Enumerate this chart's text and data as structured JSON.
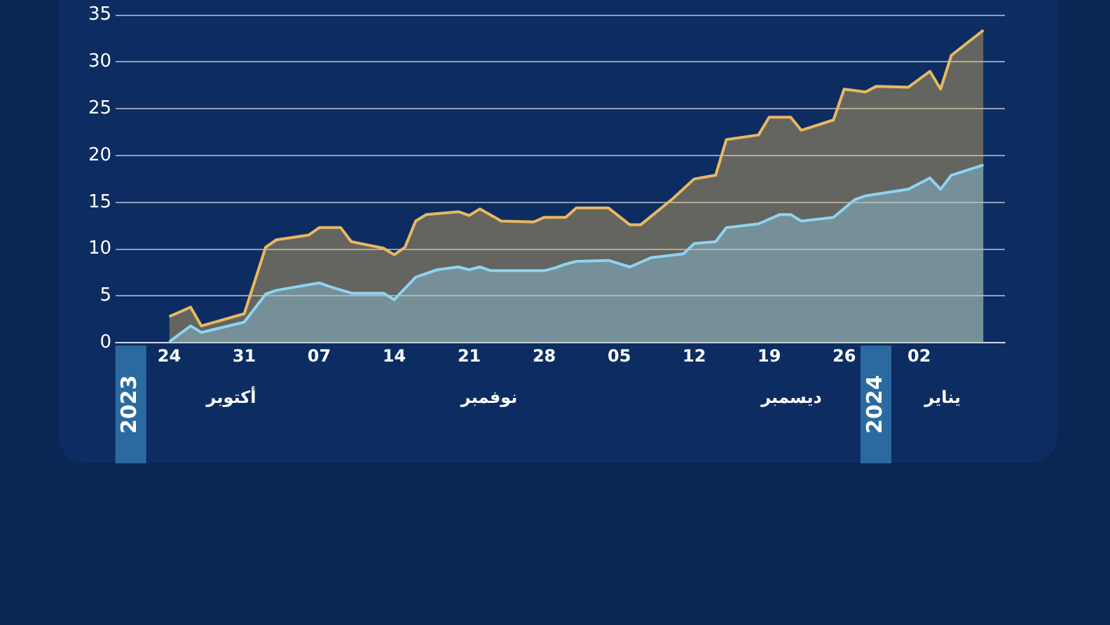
{
  "chart_data": {
    "type": "area",
    "xlim": [
      "2023-10-19",
      "2024-01-10"
    ],
    "ylim": [
      0,
      35
    ],
    "yticks": [
      0,
      5,
      10,
      15,
      20,
      25,
      30,
      35
    ],
    "xticks": [
      {
        "value": "2023-10-24",
        "label": "24"
      },
      {
        "value": "2023-10-31",
        "label": "31"
      },
      {
        "value": "2023-11-07",
        "label": "07"
      },
      {
        "value": "2023-11-14",
        "label": "14"
      },
      {
        "value": "2023-11-21",
        "label": "21"
      },
      {
        "value": "2023-11-28",
        "label": "28"
      },
      {
        "value": "2023-12-05",
        "label": "05"
      },
      {
        "value": "2023-12-12",
        "label": "12"
      },
      {
        "value": "2023-12-19",
        "label": "19"
      },
      {
        "value": "2023-12-26",
        "label": "26"
      },
      {
        "value": "2024-01-02",
        "label": "02"
      }
    ],
    "grid": "y",
    "legend": false,
    "marker": "none",
    "annotations": [
      "2023",
      "أكتوبر",
      "نوفمبر",
      "ديسمبر",
      "2024",
      "يناير"
    ],
    "series": [
      {
        "color": "#e9b860",
        "x": [
          "2023-10-24",
          "2023-10-26",
          "2023-10-27",
          "2023-10-31",
          "2023-11-02",
          "2023-11-03",
          "2023-11-06",
          "2023-11-07",
          "2023-11-09",
          "2023-11-10",
          "2023-11-13",
          "2023-11-14",
          "2023-11-15",
          "2023-11-16",
          "2023-11-17",
          "2023-11-20",
          "2023-11-21",
          "2023-11-22",
          "2023-11-24",
          "2023-11-27",
          "2023-11-28",
          "2023-11-30",
          "2023-12-01",
          "2023-12-04",
          "2023-12-06",
          "2023-12-07",
          "2023-12-10",
          "2023-12-12",
          "2023-12-14",
          "2023-12-15",
          "2023-12-18",
          "2023-12-19",
          "2023-12-21",
          "2023-12-22",
          "2023-12-25",
          "2023-12-26",
          "2023-12-28",
          "2023-12-29",
          "2024-01-01",
          "2024-01-03",
          "2024-01-04",
          "2024-01-05",
          "2024-01-08"
        ],
        "values": [
          2.8,
          3.8,
          1.8,
          3.1,
          10.2,
          11.0,
          11.5,
          12.3,
          12.3,
          10.8,
          10.1,
          9.4,
          10.2,
          13.0,
          13.7,
          14.0,
          13.6,
          14.3,
          13.0,
          12.9,
          13.4,
          13.4,
          14.4,
          14.4,
          12.6,
          12.6,
          15.4,
          17.5,
          17.9,
          21.7,
          22.2,
          24.1,
          24.1,
          22.7,
          23.8,
          27.1,
          26.8,
          27.4,
          27.3,
          29.0,
          27.1,
          30.7,
          33.4
        ]
      },
      {
        "color": "#8fd3f0",
        "x": [
          "2023-10-24",
          "2023-10-26",
          "2023-10-27",
          "2023-10-31",
          "2023-11-02",
          "2023-11-03",
          "2023-11-07",
          "2023-11-08",
          "2023-11-10",
          "2023-11-13",
          "2023-11-14",
          "2023-11-16",
          "2023-11-18",
          "2023-11-20",
          "2023-11-21",
          "2023-11-22",
          "2023-11-23",
          "2023-11-28",
          "2023-11-29",
          "2023-11-30",
          "2023-12-01",
          "2023-12-04",
          "2023-12-06",
          "2023-12-08",
          "2023-12-11",
          "2023-12-12",
          "2023-12-14",
          "2023-12-15",
          "2023-12-18",
          "2023-12-20",
          "2023-12-21",
          "2023-12-22",
          "2023-12-25",
          "2023-12-27",
          "2023-12-28",
          "2024-01-01",
          "2024-01-03",
          "2024-01-04",
          "2024-01-05",
          "2024-01-08"
        ],
        "values": [
          0.1,
          1.8,
          1.1,
          2.2,
          5.2,
          5.6,
          6.4,
          6.0,
          5.3,
          5.3,
          4.6,
          7.0,
          7.8,
          8.1,
          7.8,
          8.1,
          7.7,
          7.7,
          8.0,
          8.4,
          8.7,
          8.8,
          8.1,
          9.1,
          9.5,
          10.6,
          10.8,
          12.3,
          12.7,
          13.7,
          13.7,
          13.0,
          13.4,
          15.3,
          15.7,
          16.4,
          17.6,
          16.4,
          17.9,
          19.0
        ]
      }
    ]
  }
}
